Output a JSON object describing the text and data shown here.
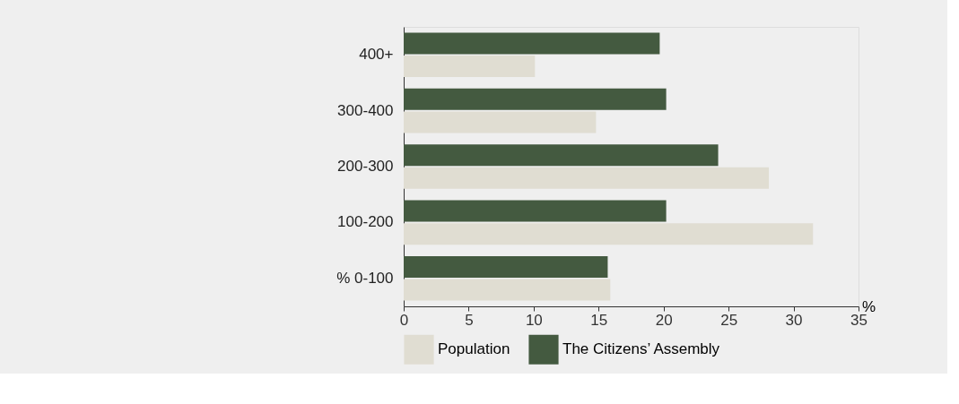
{
  "chart_data": {
    "type": "bar",
    "orientation": "horizontal",
    "xlabel": "%",
    "categories": [
      "400+",
      "300-400",
      "200-300",
      "100-200",
      "% 0-100"
    ],
    "series": [
      {
        "name": "Population",
        "color": "#e0ddd2",
        "values": [
          10.1,
          14.8,
          28.1,
          31.5,
          15.9
        ]
      },
      {
        "name": "The Citizens’ Assembly",
        "color": "#445a40",
        "values": [
          19.7,
          20.2,
          24.2,
          20.2,
          15.7
        ]
      }
    ],
    "xlim": [
      0,
      35
    ],
    "xticks": [
      0,
      5,
      10,
      15,
      20,
      25,
      30,
      35
    ],
    "grid": false,
    "legend": "bottom"
  }
}
